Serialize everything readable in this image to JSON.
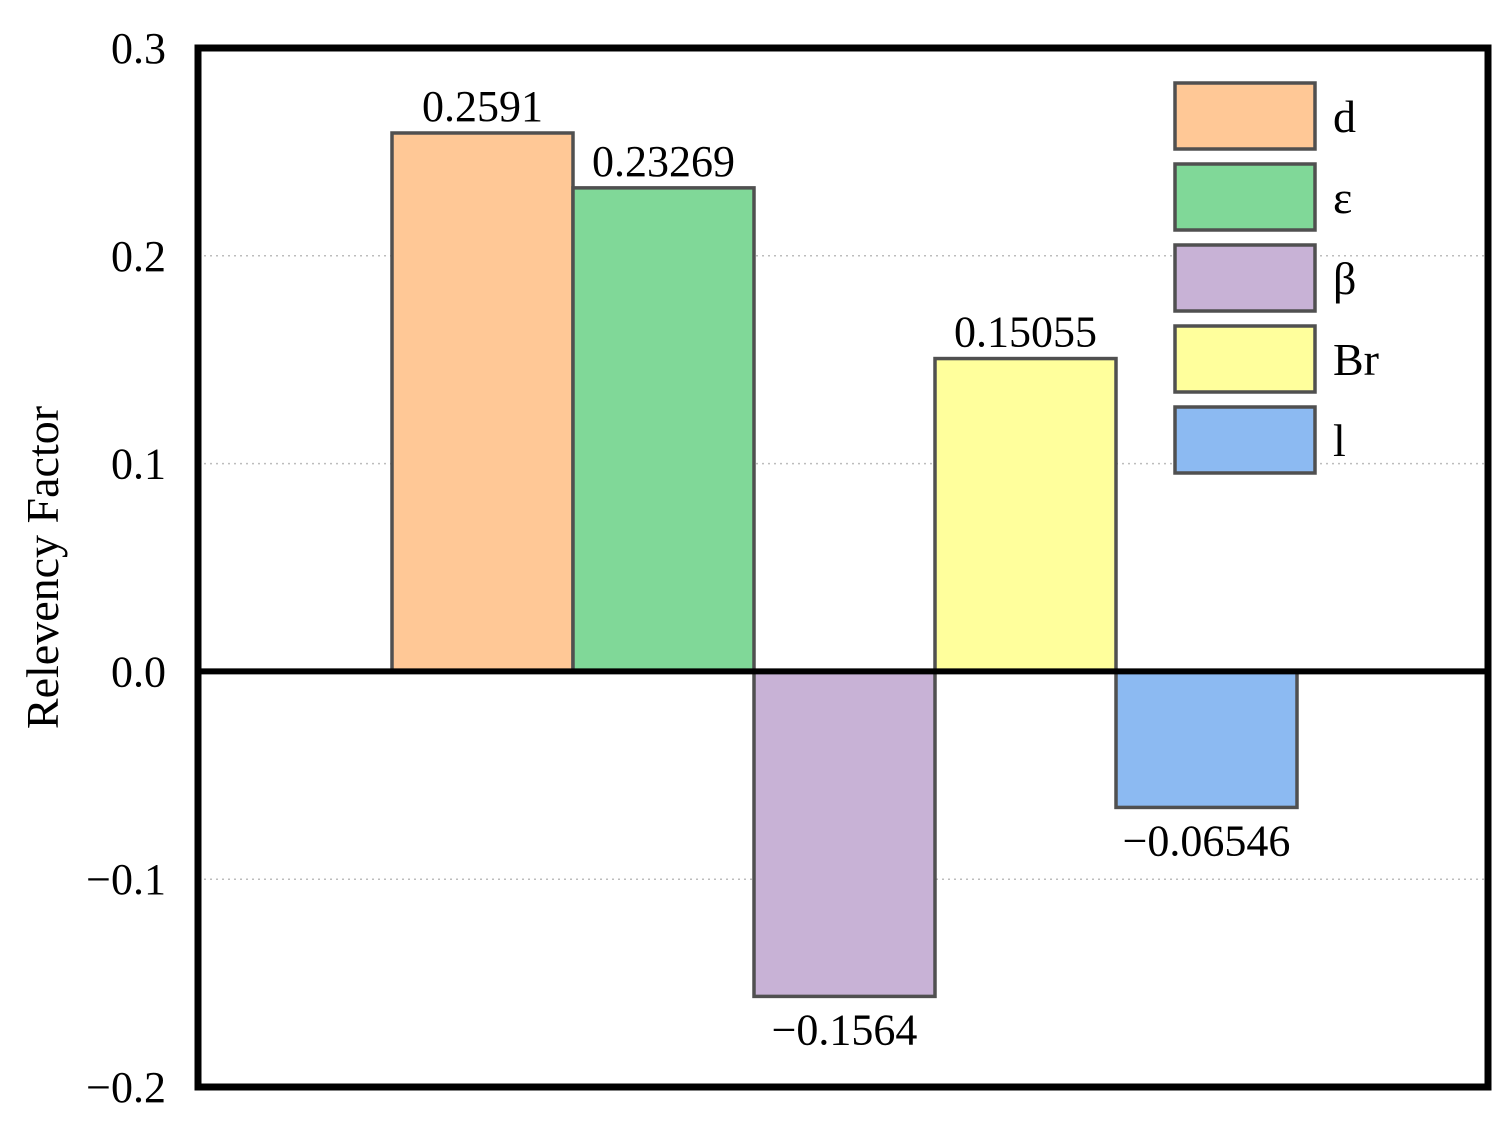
{
  "chart_data": {
    "type": "bar",
    "categories": [
      "d",
      "ε",
      "β",
      "Br",
      "l"
    ],
    "values": [
      0.2591,
      0.23269,
      -0.1564,
      0.15055,
      -0.06546
    ],
    "data_labels": [
      "0.2591",
      "0.23269",
      "−0.1564",
      "0.15055",
      "−0.06546"
    ],
    "colors": [
      "#FFC896",
      "#80D898",
      "#C8B2D6",
      "#FFFF9C",
      "#8CBAF2"
    ],
    "title": "",
    "xlabel": "",
    "ylabel": "Relevency Factor",
    "ylim": [
      -0.2,
      0.3
    ],
    "yticks": [
      0.3,
      0.2,
      0.1,
      0.0,
      -0.1,
      -0.2
    ],
    "ytick_labels": [
      "0.3",
      "0.2",
      "0.1",
      "0.0",
      "−0.1",
      "−0.2"
    ],
    "grid": "horizontal dotted",
    "legend": {
      "placement": "top-right",
      "entries": [
        "d",
        "ε",
        "β",
        "Br",
        "l"
      ]
    }
  }
}
